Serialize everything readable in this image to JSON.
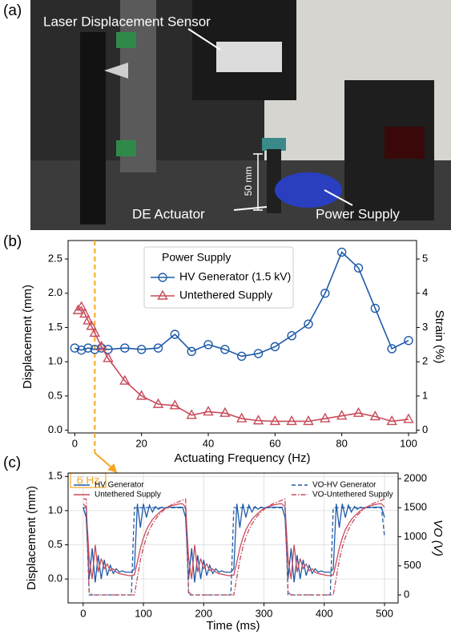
{
  "panel_a": {
    "label": "(a)",
    "annotations": [
      "Laser Displacement Sensor",
      "DE Actuator",
      "Power Supply",
      "50 mm"
    ]
  },
  "chart_data": [
    {
      "type": "line",
      "panel_label": "(b)",
      "xlabel": "Actuating Frequency (Hz)",
      "ylabel": "Displacement (mm)",
      "y2label": "Strain (%)",
      "xlim": [
        -2,
        102.4
      ],
      "xticks": [
        0,
        20,
        40,
        60,
        80,
        100
      ],
      "ylim": [
        -0.04,
        2.77
      ],
      "yticks": [
        {
          "value": 0,
          "label": "0.0"
        },
        {
          "value": 0.5,
          "label": "0.5"
        },
        {
          "value": 1,
          "label": "1.0"
        },
        {
          "value": 1.5,
          "label": "1.5"
        },
        {
          "value": 2,
          "label": "2.0"
        },
        {
          "value": 2.5,
          "label": "2.5"
        }
      ],
      "y2lim": [
        -0.08,
        5.54
      ],
      "y2ticks": [
        0,
        1,
        2,
        3,
        4,
        5
      ],
      "grid": false,
      "legend_loc": "upper center",
      "legend_title": "Power Supply",
      "annotation": {
        "text": "6 Hz",
        "x": 6,
        "color": "#f5a623"
      },
      "series": [
        {
          "name": "HV Generator (1.5 kV)",
          "color": "#1f5ba8",
          "marker": "circle",
          "dash": "solid",
          "x": [
            0,
            2,
            4,
            6,
            8,
            10,
            15,
            20,
            25,
            30,
            35,
            40,
            45,
            50,
            55,
            60,
            65,
            70,
            75,
            80,
            85,
            90,
            95,
            100
          ],
          "values": [
            1.2,
            1.17,
            1.2,
            1.18,
            1.2,
            1.18,
            1.2,
            1.18,
            1.2,
            1.4,
            1.15,
            1.25,
            1.18,
            1.08,
            1.12,
            1.22,
            1.38,
            1.55,
            2.0,
            2.6,
            2.37,
            1.78,
            1.19,
            1.31
          ]
        },
        {
          "name": "Untethered Supply",
          "color": "#c84b5a",
          "marker": "triangle",
          "dash": "solid",
          "x": [
            1,
            2,
            3,
            4,
            5,
            6,
            8,
            10,
            15,
            20,
            25,
            30,
            35,
            40,
            45,
            50,
            55,
            60,
            65,
            70,
            75,
            80,
            85,
            90,
            95,
            100
          ],
          "values": [
            1.75,
            1.8,
            1.7,
            1.6,
            1.52,
            1.42,
            1.22,
            1.05,
            0.72,
            0.5,
            0.38,
            0.36,
            0.22,
            0.27,
            0.25,
            0.17,
            0.14,
            0.13,
            0.13,
            0.13,
            0.17,
            0.21,
            0.25,
            0.2,
            0.13,
            0.16
          ]
        }
      ]
    },
    {
      "type": "line",
      "panel_label": "(c)",
      "xlabel": "Time (ms)",
      "ylabel": "Displacement (mm)",
      "y2label": "VO (V)",
      "xlim": [
        -25,
        522.6
      ],
      "xticks": [
        0,
        100,
        200,
        300,
        400,
        500
      ],
      "ylim": [
        -0.35,
        1.55
      ],
      "yticks": [
        {
          "value": 0,
          "label": "0.0"
        },
        {
          "value": 0.5,
          "label": "0.5"
        },
        {
          "value": 1,
          "label": "1.0"
        },
        {
          "value": 1.5,
          "label": "1.5"
        }
      ],
      "y2lim": [
        -138,
        2097
      ],
      "y2ticks": [
        0,
        500,
        1000,
        1500,
        2000
      ],
      "grid": true,
      "x": [
        0,
        5,
        10,
        15,
        20,
        25,
        30,
        35,
        40,
        45,
        50,
        55,
        60,
        65,
        70,
        75,
        80,
        85,
        90,
        95,
        100,
        105,
        110,
        115,
        120,
        125,
        130,
        135,
        140,
        145,
        150,
        155,
        160,
        165,
        170,
        175,
        180,
        185,
        190,
        195,
        200,
        205,
        210,
        215,
        220,
        225,
        230,
        235,
        240,
        245,
        250,
        255,
        260,
        265,
        270,
        275,
        280,
        285,
        290,
        295,
        300,
        305,
        310,
        315,
        320,
        325,
        330,
        335,
        340,
        345,
        350,
        355,
        360,
        365,
        370,
        375,
        380,
        385,
        390,
        395,
        400,
        405,
        410,
        415,
        420,
        425,
        430,
        435,
        440,
        445,
        450,
        455,
        460,
        465,
        470,
        475,
        480,
        485,
        490,
        495,
        500
      ],
      "series": [
        {
          "name": "HV Generator",
          "color": "#1f5ba8",
          "dash": "solid",
          "legend_loc": "upper left",
          "values": [
            1.05,
            0.9,
            0,
            0.45,
            -0.05,
            0.35,
            0,
            0.28,
            0.05,
            0.2,
            0.08,
            0.15,
            0.1,
            0.12,
            0.1,
            0.1,
            0.1,
            0.15,
            1.1,
            0.75,
            1.1,
            0.9,
            1.08,
            0.98,
            1.06,
            1.02,
            1.05,
            1.04,
            1.05,
            1.05,
            1.05,
            1.05,
            1.05,
            1.05,
            0.9,
            0,
            0.45,
            -0.05,
            0.35,
            0,
            0.28,
            0.05,
            0.2,
            0.08,
            0.15,
            0.1,
            0.12,
            0.1,
            0.1,
            0.1,
            0.15,
            1.1,
            0.75,
            1.1,
            0.9,
            1.08,
            0.98,
            1.06,
            1.02,
            1.05,
            1.04,
            1.05,
            1.05,
            1.05,
            1.05,
            1.05,
            1.05,
            0.9,
            0,
            0.45,
            -0.05,
            0.35,
            0,
            0.28,
            0.05,
            0.2,
            0.08,
            0.15,
            0.1,
            0.12,
            0.1,
            0.1,
            0.1,
            0.15,
            1.1,
            0.75,
            1.1,
            0.9,
            1.08,
            0.98,
            1.06,
            1.02,
            1.05,
            1.04,
            1.05,
            1.05,
            1.05,
            1.05,
            1.05,
            1.05,
            0.9
          ]
        },
        {
          "name": "Untethered Supply",
          "color": "#c84b5a",
          "dash": "solid",
          "legend_loc": "upper left",
          "values": [
            1.1,
            1.05,
            0.3,
            0,
            0.5,
            0.1,
            0.3,
            0.15,
            0.22,
            0.12,
            0.15,
            0.1,
            0.08,
            0.07,
            0.06,
            0.05,
            0.05,
            0.06,
            0.25,
            0.45,
            0.6,
            0.72,
            0.8,
            0.87,
            0.92,
            0.96,
            1,
            1.03,
            1.05,
            1.07,
            1.08,
            1.09,
            1.1,
            1.1,
            1.05,
            0.3,
            0,
            0.5,
            0.1,
            0.3,
            0.15,
            0.22,
            0.12,
            0.15,
            0.1,
            0.08,
            0.07,
            0.06,
            0.05,
            0.05,
            0.06,
            0.25,
            0.45,
            0.6,
            0.72,
            0.8,
            0.87,
            0.92,
            0.96,
            1,
            1.03,
            1.05,
            1.07,
            1.08,
            1.09,
            1.1,
            1.1,
            1.05,
            0.3,
            0,
            0.5,
            0.1,
            0.3,
            0.15,
            0.22,
            0.12,
            0.15,
            0.1,
            0.08,
            0.07,
            0.06,
            0.05,
            0.05,
            0.06,
            0.25,
            0.45,
            0.6,
            0.72,
            0.8,
            0.87,
            0.92,
            0.96,
            1,
            1.03,
            1.05,
            1.07,
            1.08,
            1.09,
            1.1,
            1.1,
            1.05
          ]
        },
        {
          "name": "VO-HV Generator",
          "color": "#1f5ba8",
          "dash": "dashed",
          "axis": "y2",
          "legend_loc": "upper right",
          "values": [
            1500,
            1500,
            0,
            0,
            0,
            0,
            0,
            0,
            0,
            0,
            0,
            0,
            0,
            0,
            0,
            0,
            0,
            1500,
            1500,
            1500,
            1500,
            1500,
            1500,
            1500,
            1500,
            1500,
            1500,
            1500,
            1500,
            1500,
            1500,
            1500,
            1500,
            1500,
            1500,
            0,
            0,
            0,
            0,
            0,
            0,
            0,
            0,
            0,
            0,
            0,
            0,
            0,
            0,
            0,
            1500,
            1500,
            1500,
            1500,
            1500,
            1500,
            1500,
            1500,
            1500,
            1500,
            1500,
            1500,
            1500,
            1500,
            1500,
            1500,
            1500,
            1500,
            0,
            0,
            0,
            0,
            0,
            0,
            0,
            0,
            0,
            0,
            0,
            0,
            0,
            0,
            0,
            1500,
            1500,
            1500,
            1500,
            1500,
            1500,
            1500,
            1500,
            1500,
            1500,
            1500,
            1500,
            1500,
            1500,
            1500,
            1500,
            1500,
            1000
          ]
        },
        {
          "name": "VO-Untethered Supply",
          "color": "#c84b5a",
          "dash": "dashdot",
          "axis": "y2",
          "legend_loc": "upper right",
          "values": [
            1650,
            1650,
            50,
            0,
            0,
            0,
            0,
            0,
            0,
            0,
            0,
            0,
            0,
            0,
            0,
            0,
            0,
            0,
            300,
            600,
            820,
            990,
            1120,
            1220,
            1300,
            1370,
            1420,
            1470,
            1510,
            1540,
            1570,
            1590,
            1610,
            1630,
            1650,
            50,
            0,
            0,
            0,
            0,
            0,
            0,
            0,
            0,
            0,
            0,
            0,
            0,
            0,
            0,
            0,
            300,
            600,
            820,
            990,
            1120,
            1220,
            1300,
            1370,
            1420,
            1470,
            1510,
            1540,
            1570,
            1590,
            1610,
            1630,
            1650,
            50,
            0,
            0,
            0,
            0,
            0,
            0,
            0,
            0,
            0,
            0,
            0,
            0,
            0,
            0,
            0,
            300,
            600,
            820,
            990,
            1120,
            1220,
            1300,
            1370,
            1420,
            1470,
            1510,
            1540,
            1570,
            1590,
            1610,
            1630,
            1650
          ]
        }
      ]
    }
  ]
}
